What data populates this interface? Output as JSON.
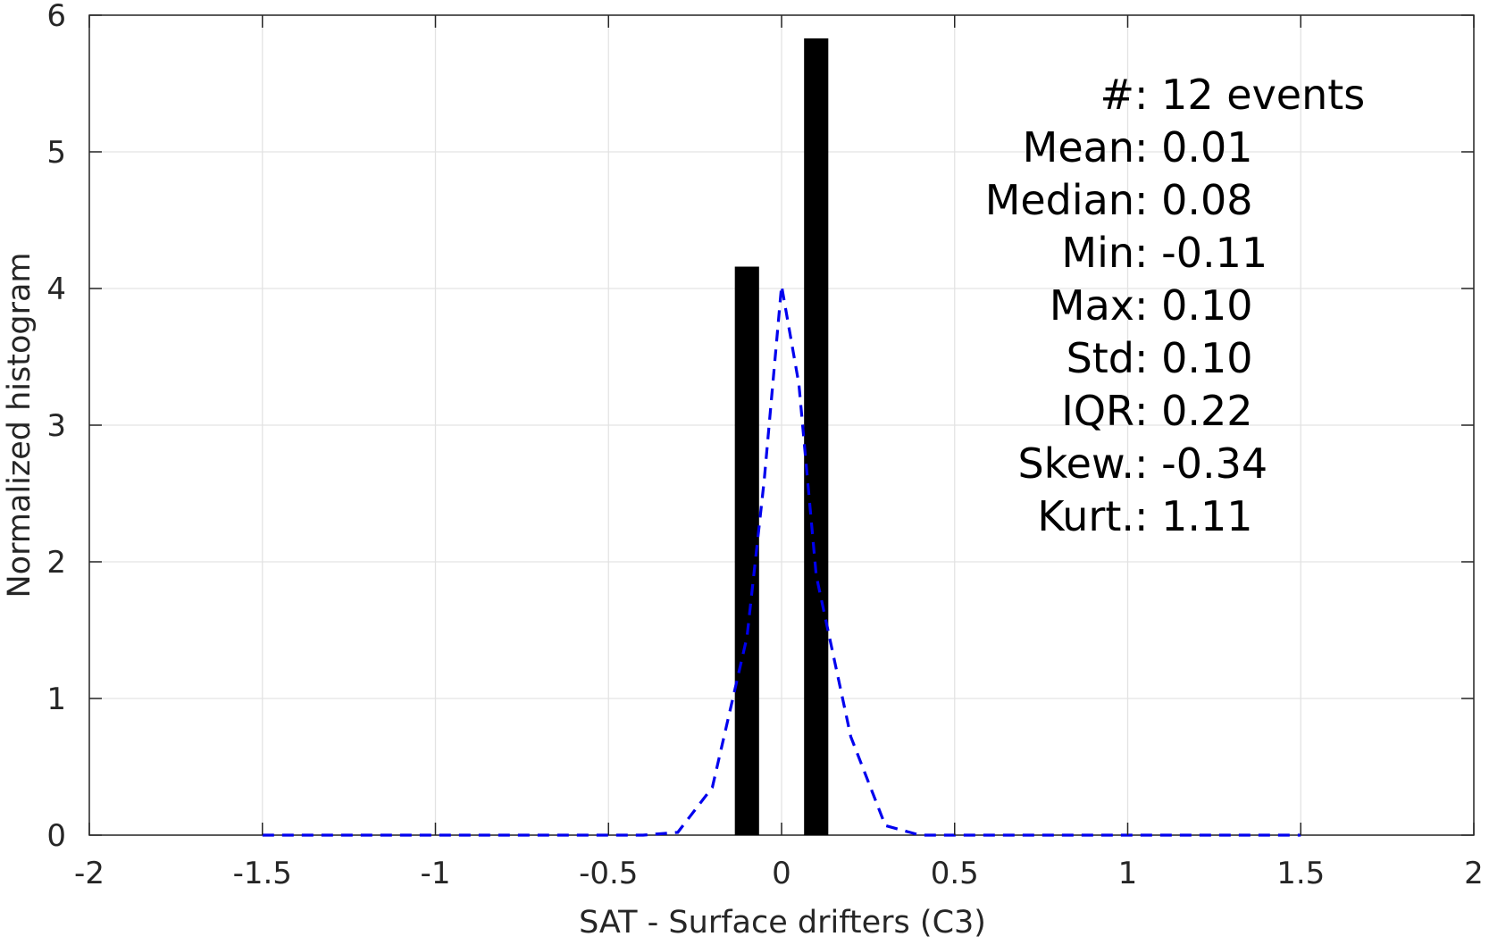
{
  "chart_data": {
    "type": "bar",
    "title": "",
    "xlabel": "SAT - Surface drifters (C3)",
    "ylabel": "Normalized histogram",
    "xlim": [
      -2,
      2
    ],
    "ylim": [
      0,
      6
    ],
    "grid": true,
    "xticks": [
      -2,
      -1.5,
      -1,
      -0.5,
      0,
      0.5,
      1,
      1.5,
      2
    ],
    "xtick_labels": [
      "-2",
      "-1.5",
      "-1",
      "-0.5",
      "0",
      "0.5",
      "1",
      "1.5",
      "2"
    ],
    "yticks": [
      0,
      1,
      2,
      3,
      4,
      5,
      6
    ],
    "ytick_labels": [
      "0",
      "1",
      "2",
      "3",
      "4",
      "5",
      "6"
    ],
    "bars": {
      "color": "#000000",
      "width": 0.07,
      "x": [
        -0.1,
        0.1
      ],
      "values": [
        4.16,
        5.83
      ]
    },
    "fit_curve": {
      "type": "line",
      "style": "dashed",
      "color": "#0000ee",
      "x": [
        -1.5,
        -0.4,
        -0.3,
        -0.2,
        -0.1,
        -0.05,
        0,
        0.05,
        0.1,
        0.2,
        0.3,
        0.4,
        1.5
      ],
      "y": [
        0,
        0,
        0.02,
        0.35,
        1.45,
        2.6,
        4.02,
        3.3,
        1.9,
        0.72,
        0.07,
        0,
        0
      ]
    },
    "annotations": [
      {
        "label": "#  ",
        "value": ": 12 events"
      },
      {
        "label": "Mean ",
        "value": ": 0.01"
      },
      {
        "label": "Median ",
        "value": ": 0.08"
      },
      {
        "label": "Min ",
        "value": ": -0.11"
      },
      {
        "label": "Max ",
        "value": ": 0.10"
      },
      {
        "label": "Std ",
        "value": ": 0.10"
      },
      {
        "label": "IQR ",
        "value": ": 0.22"
      },
      {
        "label": "Skew. ",
        "value": ": -0.34"
      },
      {
        "label": "Kurt. ",
        "value": ": 1.11"
      }
    ]
  }
}
